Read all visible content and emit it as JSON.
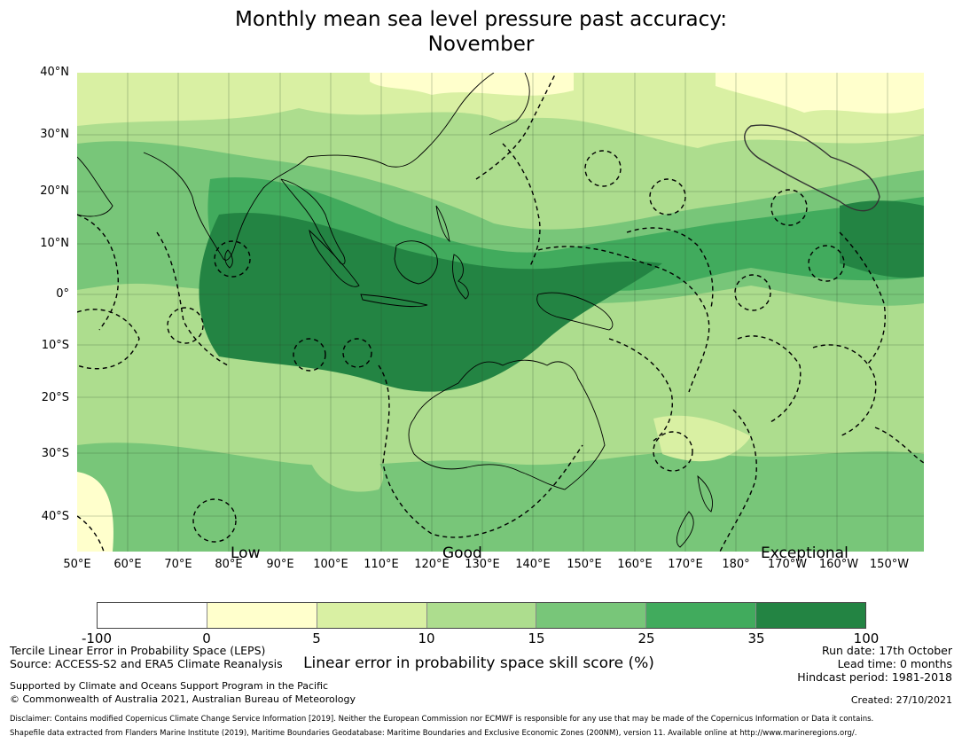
{
  "title": {
    "line1": "Monthly mean sea level pressure past accuracy:",
    "line2": "November"
  },
  "map": {
    "lat_labels": [
      "40°N",
      "30°N",
      "20°N",
      "10°N",
      "0°",
      "10°S",
      "20°S",
      "30°S",
      "40°S"
    ],
    "lon_labels": [
      "50°E",
      "60°E",
      "70°E",
      "80°E",
      "90°E",
      "100°E",
      "110°E",
      "120°E",
      "130°E",
      "140°E",
      "150°E",
      "160°E",
      "170°E",
      "180°",
      "170°W",
      "160°W",
      "150°W"
    ],
    "skill_labels": {
      "low": "Low",
      "good": "Good",
      "exceptional": "Exceptional"
    }
  },
  "colorbar": {
    "ticks": [
      "-100",
      "0",
      "5",
      "10",
      "15",
      "25",
      "35",
      "100"
    ],
    "colors": [
      "#ffffff",
      "#ffffcc",
      "#d9f0a3",
      "#addd8e",
      "#78c679",
      "#41ab5d",
      "#238443"
    ],
    "title": "Linear error in probability space skill score (%)"
  },
  "footer": {
    "method": "Tercile Linear Error in Probability Space (LEPS)",
    "source": "Source: ACCESS-S2 and ERA5 Climate Reanalysis",
    "run_date": "Run date: 17th October",
    "lead_time": "Lead time: 0 months",
    "hindcast": "Hindcast period: 1981-2018",
    "support": "Supported by Climate and Oceans Support Program in the Pacific",
    "copyright": "© Commonwealth of Australia 2021, Australian Bureau of Meteorology",
    "created": "Created: 27/10/2021",
    "disclaimer": "Disclaimer: Contains modified Copernicus Climate Change Service Information [2019]. Neither the European Commission nor ECMWF is responsible for any use that may be made of the Copernicus Information or Data it contains.",
    "shapefile": "Shapefile data extracted from Flanders Marine Institute (2019), Maritime Boundaries Geodatabase: Maritime Boundaries and Exclusive Economic Zones (200NM), version 11. Available online at http://www.marineregions.org/."
  }
}
